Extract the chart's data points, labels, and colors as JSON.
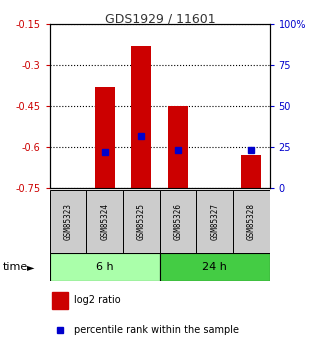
{
  "title": "GDS1929 / 11601",
  "samples": [
    "GSM85323",
    "GSM85324",
    "GSM85325",
    "GSM85326",
    "GSM85327",
    "GSM85328"
  ],
  "log2_ratio": [
    0.0,
    -0.38,
    -0.23,
    -0.45,
    0.0,
    -0.63
  ],
  "log2_bar_bottom": -0.75,
  "percentile_rank": [
    0.0,
    22.0,
    32.0,
    23.0,
    0.0,
    23.0
  ],
  "groups": [
    {
      "label": "6 h",
      "samples_idx": [
        0,
        1,
        2
      ],
      "color": "#aaffaa",
      "border": "#228822"
    },
    {
      "label": "24 h",
      "samples_idx": [
        3,
        4,
        5
      ],
      "color": "#44cc44",
      "border": "#228822"
    }
  ],
  "ylim_left": [
    -0.75,
    -0.15
  ],
  "ylim_right": [
    0,
    100
  ],
  "yticks_left": [
    -0.75,
    -0.6,
    -0.45,
    -0.3,
    -0.15
  ],
  "yticks_right": [
    0,
    25,
    50,
    75,
    100
  ],
  "ytick_labels_left": [
    "-0.75",
    "-0.6",
    "-0.45",
    "-0.3",
    "-0.15"
  ],
  "ytick_labels_right": [
    "0",
    "25",
    "50",
    "75",
    "100%"
  ],
  "bar_color": "#cc0000",
  "percentile_color": "#0000cc",
  "grid_color": "#000000",
  "bg_color": "#ffffff",
  "label_color_left": "#cc0000",
  "label_color_right": "#0000cc",
  "time_label": "time",
  "legend_log2": "log2 ratio",
  "legend_pct": "percentile rank within the sample",
  "sample_box_color": "#cccccc"
}
